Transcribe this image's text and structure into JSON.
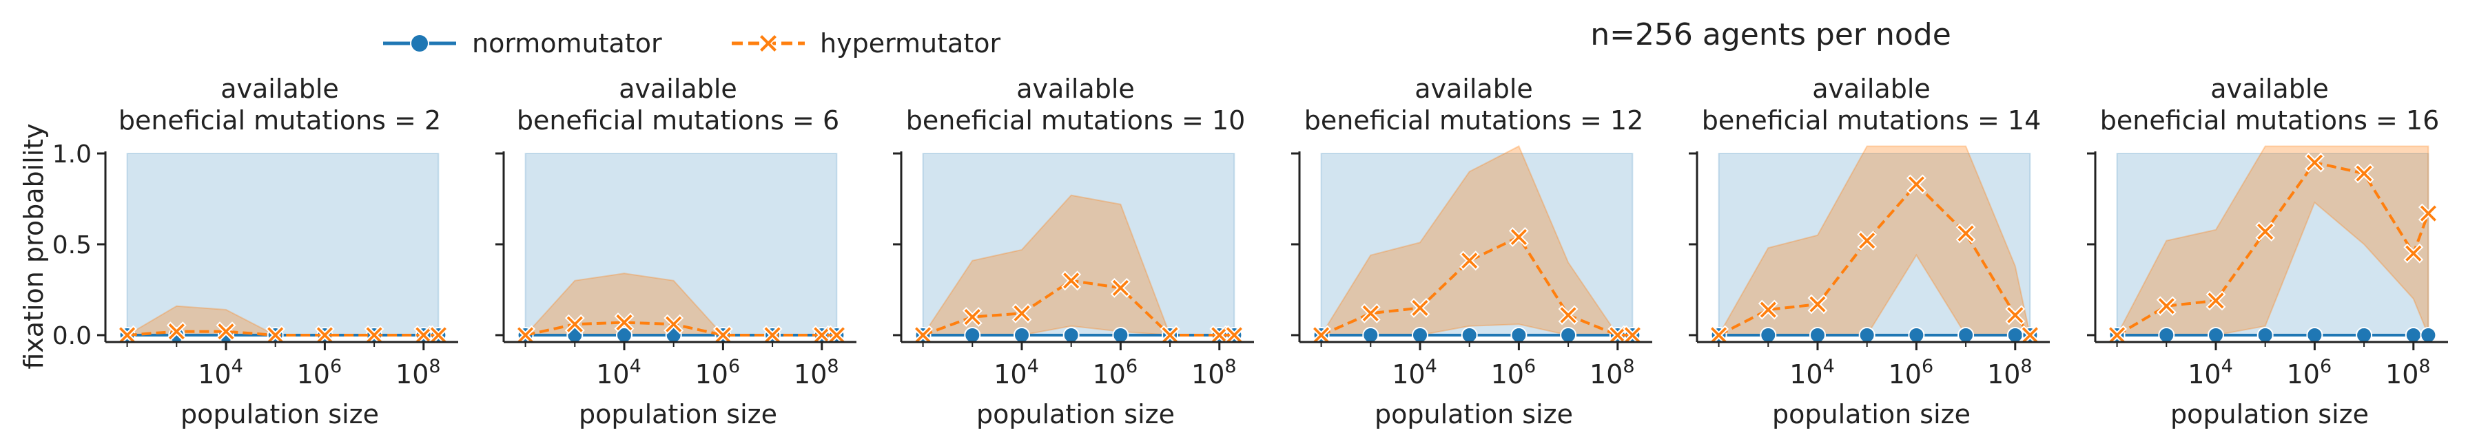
{
  "figure": {
    "suptitle": "n=256 agents per node",
    "ylabel": "fixation probability",
    "legend": [
      {
        "label": "normomutator",
        "color": "#1f77b4",
        "marker": "circle",
        "linestyle": "solid"
      },
      {
        "label": "hypermutator",
        "color": "#ff7f0e",
        "marker": "x",
        "linestyle": "dashed"
      }
    ]
  },
  "chart_data": [
    {
      "type": "line",
      "title": "available\nbeneficial mutations = 2",
      "xlabel": "population size",
      "ylabel": "fixation probability",
      "xscale": "log",
      "xlim": [
        50,
        300000000
      ],
      "ylim": [
        0,
        1.0
      ],
      "xticks": [
        "10^4",
        "10^6",
        "10^8"
      ],
      "yticks": [
        "0.0",
        "0.5",
        "1.0"
      ],
      "series": [
        {
          "name": "normomutator",
          "color": "#1f77b4",
          "x": [
            100,
            1000,
            10000,
            100000,
            1000000,
            10000000,
            100000000,
            200000000
          ],
          "values": [
            0,
            0,
            0,
            0,
            0,
            0,
            0,
            0
          ],
          "ci_low": [
            0,
            0,
            0,
            0,
            0,
            0,
            0,
            0
          ],
          "ci_high": [
            1,
            1,
            1,
            1,
            1,
            1,
            1,
            1
          ]
        },
        {
          "name": "hypermutator",
          "color": "#ff7f0e",
          "x": [
            100,
            1000,
            10000,
            100000,
            1000000,
            10000000,
            100000000,
            200000000
          ],
          "values": [
            0,
            0.02,
            0.02,
            0,
            0,
            0,
            0,
            0
          ],
          "ci_low": [
            0,
            0,
            0,
            0,
            0,
            0,
            0,
            0
          ],
          "ci_high": [
            0,
            0.16,
            0.14,
            0,
            0,
            0,
            0,
            0
          ]
        }
      ]
    },
    {
      "type": "line",
      "title": "available\nbeneficial mutations = 6",
      "xlabel": "population size",
      "ylabel": "",
      "xscale": "log",
      "xlim": [
        50,
        300000000
      ],
      "ylim": [
        0,
        1.0
      ],
      "xticks": [
        "10^4",
        "10^6",
        "10^8"
      ],
      "yticks": [
        "0.0",
        "0.5",
        "1.0"
      ],
      "series": [
        {
          "name": "normomutator",
          "color": "#1f77b4",
          "x": [
            100,
            1000,
            10000,
            100000,
            1000000,
            10000000,
            100000000,
            200000000
          ],
          "values": [
            0,
            0,
            0,
            0,
            0,
            0,
            0,
            0
          ],
          "ci_low": [
            0,
            0,
            0,
            0,
            0,
            0,
            0,
            0
          ],
          "ci_high": [
            1,
            1,
            1,
            1,
            1,
            1,
            1,
            1
          ]
        },
        {
          "name": "hypermutator",
          "color": "#ff7f0e",
          "x": [
            100,
            1000,
            10000,
            100000,
            1000000,
            10000000,
            100000000,
            200000000
          ],
          "values": [
            0,
            0.06,
            0.07,
            0.06,
            0,
            0,
            0,
            0
          ],
          "ci_low": [
            0,
            0,
            0,
            0,
            0,
            0,
            0,
            0
          ],
          "ci_high": [
            0,
            0.3,
            0.34,
            0.3,
            0,
            0,
            0,
            0
          ]
        }
      ]
    },
    {
      "type": "line",
      "title": "available\nbeneficial mutations = 10",
      "xlabel": "population size",
      "ylabel": "",
      "xscale": "log",
      "xlim": [
        50,
        300000000
      ],
      "ylim": [
        0,
        1.0
      ],
      "xticks": [
        "10^4",
        "10^6",
        "10^8"
      ],
      "yticks": [
        "0.0",
        "0.5",
        "1.0"
      ],
      "series": [
        {
          "name": "normomutator",
          "color": "#1f77b4",
          "x": [
            100,
            1000,
            10000,
            100000,
            1000000,
            10000000,
            100000000,
            200000000
          ],
          "values": [
            0,
            0,
            0,
            0,
            0,
            0,
            0,
            0
          ],
          "ci_low": [
            0,
            0,
            0,
            0,
            0,
            0,
            0,
            0
          ],
          "ci_high": [
            1,
            1,
            1,
            1,
            1,
            1,
            1,
            1
          ]
        },
        {
          "name": "hypermutator",
          "color": "#ff7f0e",
          "x": [
            100,
            1000,
            10000,
            100000,
            1000000,
            10000000,
            100000000,
            200000000
          ],
          "values": [
            0,
            0.1,
            0.12,
            0.3,
            0.26,
            0,
            0,
            0
          ],
          "ci_low": [
            0,
            0,
            0,
            0.05,
            0.02,
            0,
            0,
            0
          ],
          "ci_high": [
            0,
            0.41,
            0.47,
            0.77,
            0.72,
            0,
            0,
            0
          ]
        }
      ]
    },
    {
      "type": "line",
      "title": "available\nbeneficial mutations = 12",
      "xlabel": "population size",
      "ylabel": "",
      "xscale": "log",
      "xlim": [
        50,
        300000000
      ],
      "ylim": [
        0,
        1.0
      ],
      "xticks": [
        "10^4",
        "10^6",
        "10^8"
      ],
      "yticks": [
        "0.0",
        "0.5",
        "1.0"
      ],
      "series": [
        {
          "name": "normomutator",
          "color": "#1f77b4",
          "x": [
            100,
            1000,
            10000,
            100000,
            1000000,
            10000000,
            100000000,
            200000000
          ],
          "values": [
            0,
            0,
            0,
            0,
            0,
            0,
            0,
            0
          ],
          "ci_low": [
            0,
            0,
            0,
            0,
            0,
            0,
            0,
            0
          ],
          "ci_high": [
            1,
            1,
            1,
            1,
            1,
            1,
            1,
            1
          ]
        },
        {
          "name": "hypermutator",
          "color": "#ff7f0e",
          "x": [
            100,
            1000,
            10000,
            100000,
            1000000,
            10000000,
            100000000,
            200000000
          ],
          "values": [
            0,
            0.12,
            0.15,
            0.41,
            0.54,
            0.11,
            0,
            0
          ],
          "ci_low": [
            0,
            0,
            0,
            0.05,
            0.06,
            0,
            0,
            0
          ],
          "ci_high": [
            0,
            0.44,
            0.51,
            0.9,
            1.04,
            0.4,
            0,
            0
          ]
        }
      ]
    },
    {
      "type": "line",
      "title": "available\nbeneficial mutations = 14",
      "xlabel": "population size",
      "ylabel": "",
      "xscale": "log",
      "xlim": [
        50,
        300000000
      ],
      "ylim": [
        0,
        1.0
      ],
      "xticks": [
        "10^4",
        "10^6",
        "10^8"
      ],
      "yticks": [
        "0.0",
        "0.5",
        "1.0"
      ],
      "series": [
        {
          "name": "normomutator",
          "color": "#1f77b4",
          "x": [
            100,
            1000,
            10000,
            100000,
            1000000,
            10000000,
            100000000,
            200000000
          ],
          "values": [
            0,
            0,
            0,
            0,
            0,
            0,
            0,
            0
          ],
          "ci_low": [
            0,
            0,
            0,
            0,
            0,
            0,
            0,
            0
          ],
          "ci_high": [
            1,
            1,
            1,
            1,
            1,
            1,
            1,
            1
          ]
        },
        {
          "name": "hypermutator",
          "color": "#ff7f0e",
          "x": [
            100,
            1000,
            10000,
            100000,
            1000000,
            10000000,
            100000000,
            200000000
          ],
          "values": [
            0,
            0.14,
            0.17,
            0.52,
            0.83,
            0.56,
            0.11,
            0
          ],
          "ci_low": [
            0,
            0,
            0,
            0,
            0.44,
            0,
            0,
            0
          ],
          "ci_high": [
            0,
            0.48,
            0.55,
            1.04,
            1.04,
            1.04,
            0.38,
            0
          ]
        }
      ]
    },
    {
      "type": "line",
      "title": "available\nbeneficial mutations = 16",
      "xlabel": "population size",
      "ylabel": "",
      "xscale": "log",
      "xlim": [
        50,
        300000000
      ],
      "ylim": [
        0,
        1.0
      ],
      "xticks": [
        "10^4",
        "10^6",
        "10^8"
      ],
      "yticks": [
        "0.0",
        "0.5",
        "1.0"
      ],
      "series": [
        {
          "name": "normomutator",
          "color": "#1f77b4",
          "x": [
            100,
            1000,
            10000,
            100000,
            1000000,
            10000000,
            100000000,
            200000000
          ],
          "values": [
            0,
            0,
            0,
            0,
            0,
            0,
            0,
            0
          ],
          "ci_low": [
            0,
            0,
            0,
            0,
            0,
            0,
            0,
            0
          ],
          "ci_high": [
            1,
            1,
            1,
            1,
            1,
            1,
            1,
            1
          ]
        },
        {
          "name": "hypermutator",
          "color": "#ff7f0e",
          "x": [
            100,
            1000,
            10000,
            100000,
            1000000,
            10000000,
            100000000,
            200000000
          ],
          "values": [
            0,
            0.16,
            0.19,
            0.57,
            0.95,
            0.89,
            0.45,
            0.67
          ],
          "ci_low": [
            0,
            0,
            0,
            0.05,
            0.73,
            0.5,
            0.2,
            0
          ],
          "ci_high": [
            0,
            0.52,
            0.58,
            1.04,
            1.04,
            1.04,
            1.04,
            1.04
          ]
        }
      ]
    }
  ]
}
